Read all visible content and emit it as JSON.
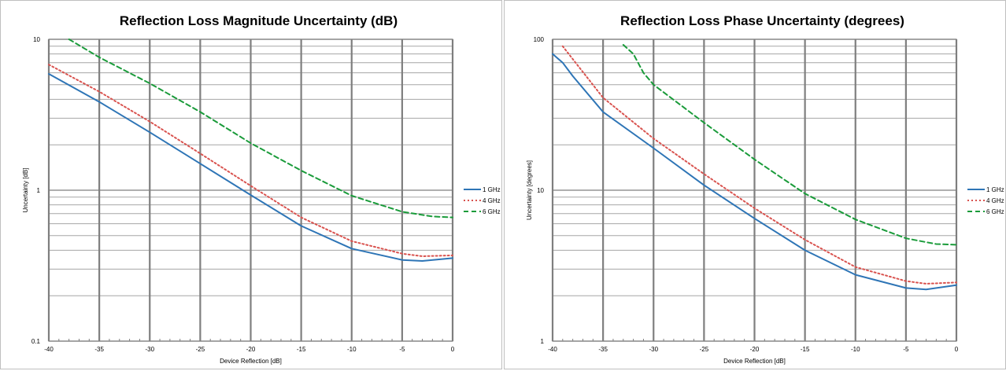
{
  "chart_data": [
    {
      "type": "line",
      "title": "Reflection Loss Magnitude Uncertainty (dB)",
      "xlabel": "Device Reflection [dB]",
      "ylabel": "Uncertainty [dB]",
      "xlim": [
        -40,
        0
      ],
      "ylim": [
        0.1,
        10
      ],
      "yscale": "log",
      "x_ticks": [
        -40,
        -35,
        -30,
        -25,
        -20,
        -15,
        -10,
        -5,
        0
      ],
      "y_ticks": [
        0.1,
        1,
        10
      ],
      "x_tick_labels": [
        "-40",
        "-35",
        "-30",
        "-25",
        "-20",
        "-15",
        "-10",
        "-5",
        "0"
      ],
      "y_tick_labels": [
        "0.1",
        "1",
        "10"
      ],
      "grid": true,
      "legend_position": "right",
      "series": [
        {
          "name": "1 GHz",
          "color": "#2e75b6",
          "style": "solid",
          "x": [
            -40,
            -35,
            -30,
            -25,
            -20,
            -15,
            -10,
            -5,
            -3,
            0
          ],
          "y": [
            5.9,
            3.85,
            2.42,
            1.5,
            0.93,
            0.58,
            0.41,
            0.345,
            0.34,
            0.355
          ]
        },
        {
          "name": "4 GHz",
          "color": "#d9534f",
          "style": "dotted",
          "x": [
            -40,
            -35,
            -30,
            -25,
            -20,
            -15,
            -10,
            -5,
            -3,
            0
          ],
          "y": [
            6.8,
            4.5,
            2.85,
            1.75,
            1.07,
            0.66,
            0.46,
            0.38,
            0.365,
            0.37
          ]
        },
        {
          "name": "6 GHz",
          "color": "#1a9b3a",
          "style": "dashed",
          "x": [
            -38,
            -35,
            -30,
            -25,
            -20,
            -15,
            -10,
            -5,
            -2,
            0
          ],
          "y": [
            10.0,
            7.6,
            5.1,
            3.3,
            2.05,
            1.35,
            0.92,
            0.72,
            0.67,
            0.66
          ]
        }
      ]
    },
    {
      "type": "line",
      "title": "Reflection Loss Phase Uncertainty (degrees)",
      "xlabel": "Device Reflection [dB]",
      "ylabel": "Uncertainty [degrees]",
      "xlim": [
        -40,
        0
      ],
      "ylim": [
        1,
        100
      ],
      "yscale": "log",
      "x_ticks": [
        -40,
        -35,
        -30,
        -25,
        -20,
        -15,
        -10,
        -5,
        0
      ],
      "y_ticks": [
        1,
        10,
        100
      ],
      "x_tick_labels": [
        "-40",
        "-35",
        "-30",
        "-25",
        "-20",
        "-15",
        "-10",
        "-5",
        "0"
      ],
      "y_tick_labels": [
        "1",
        "10",
        "100"
      ],
      "grid": true,
      "legend_position": "right",
      "series": [
        {
          "name": "1 GHz",
          "color": "#2e75b6",
          "style": "solid",
          "x": [
            -40,
            -39,
            -38,
            -35,
            -30,
            -25,
            -20,
            -15,
            -10,
            -5,
            -3,
            0
          ],
          "y": [
            80,
            70,
            57,
            33,
            19,
            10.8,
            6.5,
            4.0,
            2.75,
            2.25,
            2.2,
            2.35
          ]
        },
        {
          "name": "4 GHz",
          "color": "#d9534f",
          "style": "dotted",
          "x": [
            -39,
            -35,
            -30,
            -25,
            -20,
            -15,
            -10,
            -5,
            -3,
            0
          ],
          "y": [
            90,
            41,
            22,
            12.8,
            7.6,
            4.7,
            3.1,
            2.5,
            2.4,
            2.45
          ]
        },
        {
          "name": "6 GHz",
          "color": "#1a9b3a",
          "style": "dashed",
          "x": [
            -33,
            -32,
            -31,
            -30,
            -25,
            -20,
            -15,
            -10,
            -5,
            -2,
            0
          ],
          "y": [
            92,
            80,
            60,
            50,
            28,
            16,
            9.5,
            6.4,
            4.8,
            4.4,
            4.35
          ]
        }
      ]
    }
  ]
}
